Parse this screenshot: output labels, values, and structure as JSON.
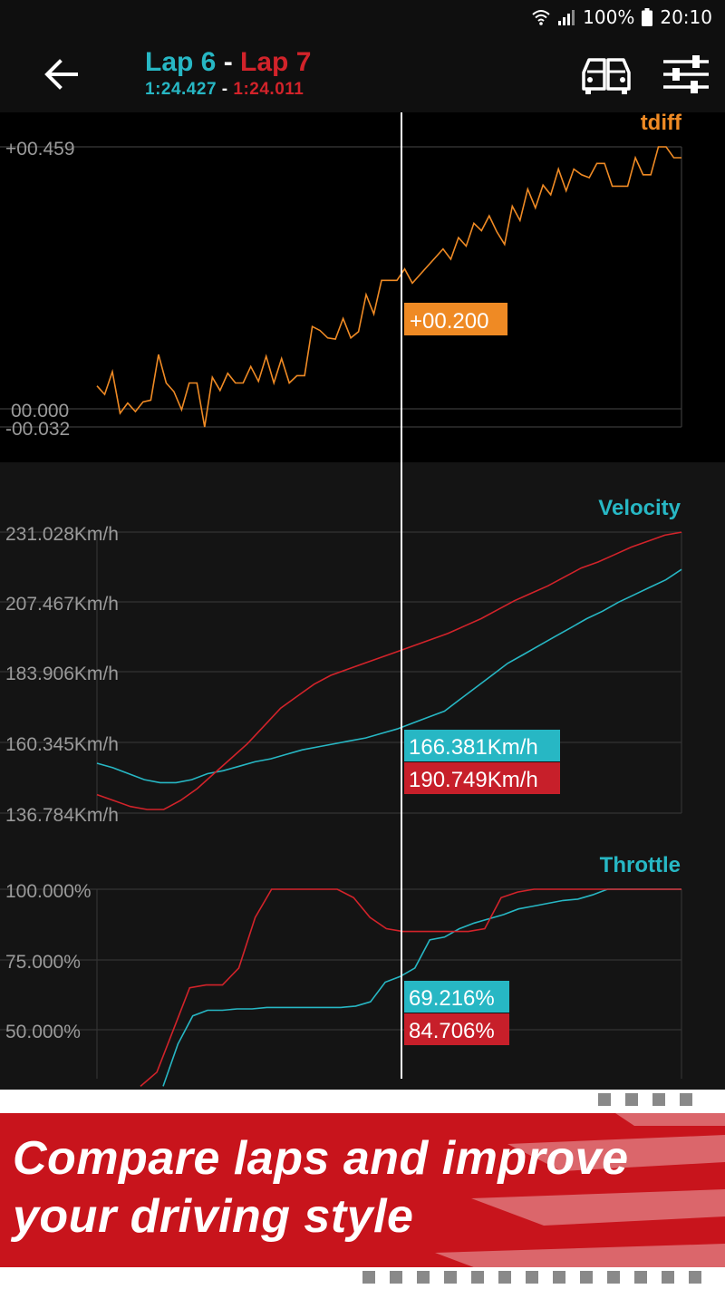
{
  "status_bar": {
    "battery": "100%",
    "time": "20:10"
  },
  "header": {
    "lap_a": "Lap 6",
    "separator": "-",
    "lap_b": "Lap 7",
    "time_a": "1:24.427",
    "time_b": "1:24.011",
    "icons": [
      "back-arrow-icon",
      "compare-cars-icon",
      "sliders-icon"
    ]
  },
  "colors": {
    "lap_a": "#27b7c4",
    "lap_b": "#d2232a",
    "tdiff": "#ef8a24"
  },
  "chart_data": [
    {
      "type": "line",
      "title": "tdiff",
      "y_ticks": [
        "+00.459",
        "00.000",
        "-00.032"
      ],
      "ylim": [
        -0.032,
        0.459
      ],
      "cursor_value": "+00.200",
      "series": [
        {
          "values": [
            0.04,
            0.025,
            0.065,
            -0.008,
            0.01,
            -0.005,
            0.012,
            0.015,
            0.095,
            0.045,
            0.03,
            -0.002,
            0.045,
            0.045,
            -0.032,
            0.055,
            0.032,
            0.062,
            0.045,
            0.045,
            0.074,
            0.048,
            0.092,
            0.045,
            0.088,
            0.045,
            0.058,
            0.058,
            0.144,
            0.137,
            0.124,
            0.122,
            0.158,
            0.124,
            0.135,
            0.2,
            0.166,
            0.225,
            0.225,
            0.225,
            0.245,
            0.22,
            0.235,
            0.25,
            0.265,
            0.28,
            0.262,
            0.3,
            0.285,
            0.325,
            0.312,
            0.338,
            0.31,
            0.288,
            0.355,
            0.33,
            0.385,
            0.352,
            0.392,
            0.375,
            0.42,
            0.382,
            0.42,
            0.41,
            0.405,
            0.43,
            0.43,
            0.39,
            0.39,
            0.39,
            0.44,
            0.41,
            0.41,
            0.459,
            0.459,
            0.44,
            0.44
          ]
        }
      ]
    },
    {
      "type": "line",
      "title": "Velocity",
      "y_ticks": [
        "231.028Km/h",
        "207.467Km/h",
        "183.906Km/h",
        "160.345Km/h",
        "136.784Km/h"
      ],
      "ylim": [
        136.784,
        231.028
      ],
      "cursor_values": [
        "166.381Km/h",
        "190.749Km/h"
      ],
      "series": [
        {
          "values": [
            153.5,
            152,
            150,
            148,
            147,
            147,
            148,
            150,
            151,
            152.5,
            154,
            155,
            156.5,
            158,
            159,
            160,
            161,
            162,
            163.5,
            165,
            167,
            169,
            171,
            175,
            179,
            183,
            187,
            190,
            193,
            196,
            199,
            202,
            204.5,
            207.5,
            210,
            212.5,
            215,
            218.5
          ]
        },
        {
          "values": [
            143,
            141,
            139,
            138,
            138,
            141,
            145,
            150,
            155,
            160,
            166,
            172,
            176,
            180,
            183,
            185,
            187,
            189,
            191,
            193,
            195,
            197,
            199.5,
            202,
            205,
            208,
            210.5,
            213,
            216,
            219,
            221,
            223.5,
            226,
            228,
            230,
            231
          ]
        }
      ]
    },
    {
      "type": "line",
      "title": "Throttle",
      "y_ticks": [
        "100.000%",
        "75.000%",
        "50.000%"
      ],
      "ylim": [
        24,
        100
      ],
      "cursor_values": [
        "69.216%",
        "84.706%"
      ],
      "series": [
        {
          "values": [
            30,
            45,
            55,
            57,
            57,
            57.5,
            57.5,
            58,
            58,
            58,
            58,
            58,
            58,
            58.5,
            60,
            67,
            69,
            72,
            82,
            83,
            86,
            88,
            89.5,
            91,
            93,
            94,
            95,
            96,
            96.5,
            98,
            100,
            100,
            100,
            100,
            100,
            100
          ]
        },
        {
          "values": [
            30,
            35,
            50,
            65,
            66,
            66,
            72,
            90,
            100,
            100,
            100,
            100,
            100,
            97,
            90,
            86,
            85,
            85,
            85,
            85,
            85,
            86,
            97,
            99,
            100,
            100,
            100,
            100,
            100,
            100,
            100,
            100,
            100,
            100
          ]
        }
      ]
    }
  ],
  "banner": {
    "line1": "Compare laps and improve",
    "line2": "your driving style"
  }
}
